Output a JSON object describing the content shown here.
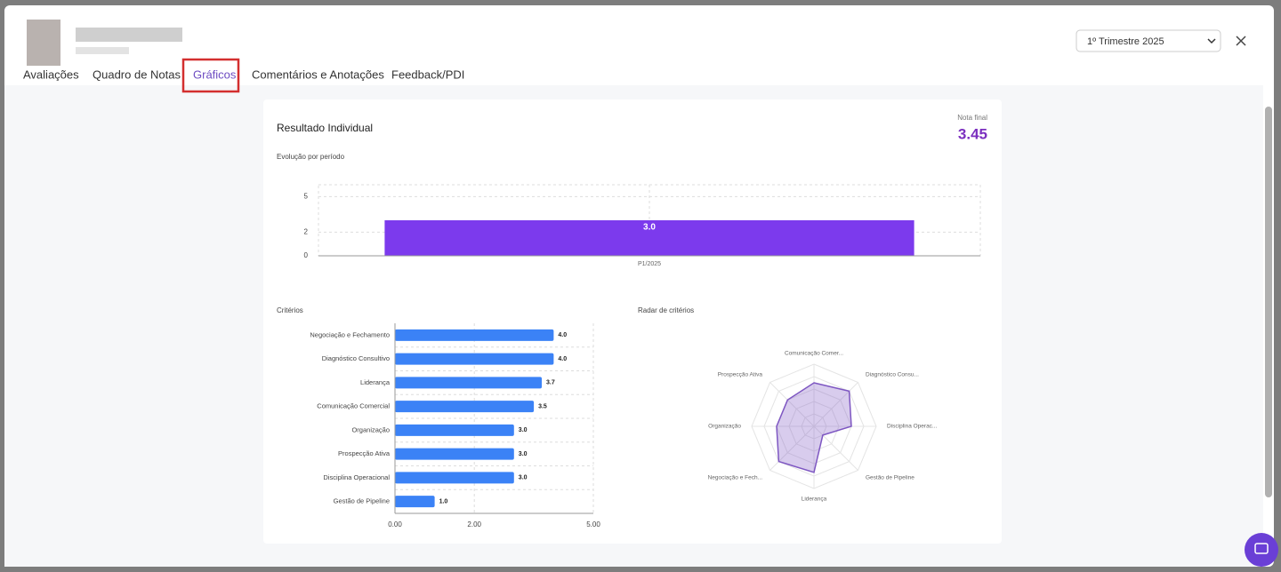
{
  "header": {
    "tabs": [
      "Avaliações",
      "Quadro de Notas",
      "Gráficos",
      "Comentários e Anotações",
      "Feedback/PDI"
    ],
    "period_select": "1º Trimestre 2025"
  },
  "card": {
    "title": "Resultado Individual",
    "final_label": "Nota final",
    "final_value": 3.45
  },
  "evolution_chart": {
    "type": "bar",
    "title": "Evolução por período",
    "categories": [
      "P1/2025"
    ],
    "values": [
      3
    ],
    "value_labels": [
      "3.0"
    ],
    "color": "#7c3aed",
    "ylim": [
      0,
      6
    ],
    "yticks": [
      0,
      2,
      5
    ],
    "grid": true
  },
  "criteria_chart": {
    "type": "hbar",
    "title": "Critérios",
    "categories": [
      "Negociação e Fechamento",
      "Diagnóstico Consultivo",
      "Liderança",
      "Comunicação Comercial",
      "Organização",
      "Prospecção Ativa",
      "Disciplina Operacional",
      "Gestão de Pipeline"
    ],
    "values": [
      4,
      4,
      3.7,
      3.5,
      3,
      3,
      3,
      1
    ],
    "value_labels": [
      "4.0",
      "4.0",
      "3.7",
      "3.5",
      "3.0",
      "3.0",
      "3.0",
      "1.0"
    ],
    "color": "#3b82f6",
    "xlim": [
      0,
      5
    ],
    "xticks": [
      {
        "value": 0,
        "label": "0.00"
      },
      {
        "value": 2,
        "label": "2.00"
      },
      {
        "value": 5,
        "label": "5.00"
      }
    ],
    "grid": true
  },
  "radar_chart": {
    "type": "radar",
    "title": "Radar de critérios",
    "categories": [
      "Comunicação Comer...",
      "Diagnóstico Consu...",
      "Disciplina Operac...",
      "Gestão de Pipeline",
      "Liderança",
      "Negociação e Fech...",
      "Organização",
      "Prospecção Ativa"
    ],
    "values": [
      3.5,
      4,
      3,
      1,
      3.7,
      4,
      3,
      3
    ],
    "color": "#7e57c2",
    "rlim": [
      0,
      5
    ],
    "rticks": [
      1,
      2,
      3,
      4,
      5
    ]
  }
}
